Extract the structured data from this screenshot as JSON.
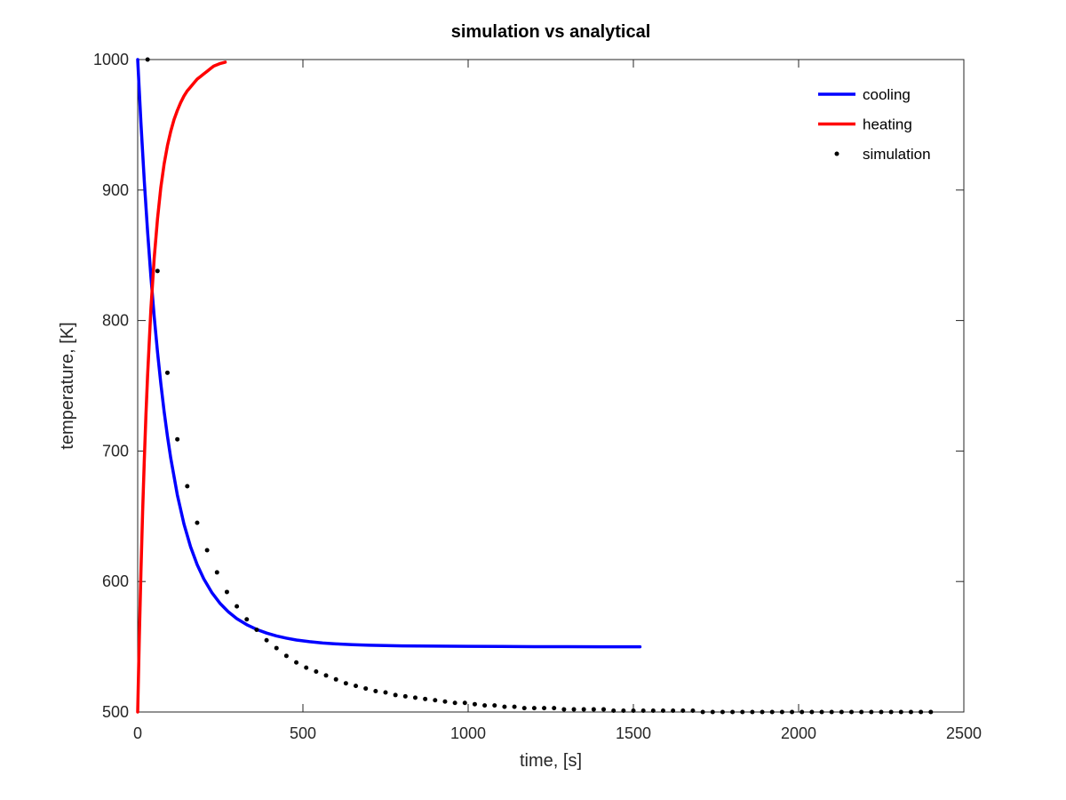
{
  "chart_data": {
    "type": "line",
    "title": "simulation vs analytical",
    "xlabel": "time, [s]",
    "ylabel": "temperature, [K]",
    "xlim": [
      0,
      2500
    ],
    "ylim": [
      500,
      1000
    ],
    "xticks": [
      0,
      500,
      1000,
      1500,
      2000,
      2500
    ],
    "yticks": [
      500,
      600,
      700,
      800,
      900,
      1000
    ],
    "grid": false,
    "legend_position": "top-right",
    "series": [
      {
        "name": "cooling",
        "style": "line",
        "color": "#0000ff",
        "x": [
          0,
          10,
          20,
          30,
          40,
          50,
          60,
          70,
          80,
          90,
          100,
          120,
          140,
          160,
          180,
          200,
          225,
          250,
          275,
          300,
          330,
          360,
          390,
          420,
          450,
          480,
          520,
          560,
          600,
          650,
          700,
          750,
          800,
          850,
          900,
          950,
          1000,
          1100,
          1200,
          1300,
          1400,
          1520
        ],
        "y": [
          1000,
          950.6,
          906.8,
          868,
          833.5,
          802.9,
          775.8,
          751.7,
          730.3,
          711.4,
          694.6,
          666.3,
          644.1,
          626.6,
          612.9,
          602,
          591.3,
          583,
          576.6,
          571.5,
          566.9,
          563.3,
          560.5,
          558.3,
          556.6,
          555.2,
          553.9,
          552.9,
          552.2,
          551.6,
          551.2,
          550.9,
          550.7,
          550.6,
          550.5,
          550.4,
          550.3,
          550.2,
          550.1,
          550.1,
          550,
          550
        ]
      },
      {
        "name": "heating",
        "style": "line",
        "color": "#ff0000",
        "x": [
          0,
          5,
          10,
          15,
          20,
          25,
          30,
          40,
          50,
          60,
          70,
          80,
          90,
          100,
          110,
          120,
          130,
          140,
          150,
          160,
          170,
          180,
          190,
          200,
          210,
          220,
          230,
          240,
          250,
          265
        ],
        "y": [
          500,
          558,
          609,
          654,
          693,
          728,
          758,
          809,
          848,
          878,
          902,
          920,
          934,
          945,
          954,
          961,
          967,
          972,
          976,
          979,
          982,
          985,
          987,
          989,
          991,
          993,
          995,
          996,
          997,
          998
        ]
      },
      {
        "name": "simulation",
        "style": "markers",
        "color": "#000000",
        "x": [
          30,
          60,
          90,
          120,
          150,
          180,
          210,
          240,
          270,
          300,
          330,
          360,
          390,
          420,
          450,
          480,
          510,
          540,
          570,
          600,
          630,
          660,
          690,
          720,
          750,
          780,
          810,
          840,
          870,
          900,
          930,
          960,
          990,
          1020,
          1050,
          1080,
          1110,
          1140,
          1170,
          1200,
          1230,
          1260,
          1290,
          1320,
          1350,
          1380,
          1410,
          1440,
          1470,
          1500,
          1530,
          1560,
          1590,
          1620,
          1650,
          1680,
          1710,
          1740,
          1770,
          1800,
          1830,
          1860,
          1890,
          1920,
          1950,
          1980,
          2010,
          2040,
          2070,
          2100,
          2130,
          2160,
          2190,
          2220,
          2250,
          2280,
          2310,
          2340,
          2370,
          2400
        ],
        "y": [
          1000,
          838,
          760,
          709,
          673,
          645,
          624,
          607,
          592,
          581,
          571,
          563,
          555,
          549,
          543,
          538,
          534,
          531,
          528,
          525,
          522,
          520,
          518,
          516,
          515,
          513,
          512,
          511,
          510,
          509,
          508,
          507,
          507,
          506,
          505,
          505,
          504,
          504,
          503,
          503,
          503,
          503,
          502,
          502,
          502,
          502,
          502,
          501,
          501,
          501,
          501,
          501,
          501,
          501,
          501,
          501,
          500,
          500,
          500,
          500,
          500,
          500,
          500,
          500,
          500,
          500,
          500,
          500,
          500,
          500,
          500,
          500,
          500,
          500,
          500,
          500,
          500,
          500,
          500,
          500
        ]
      }
    ]
  }
}
